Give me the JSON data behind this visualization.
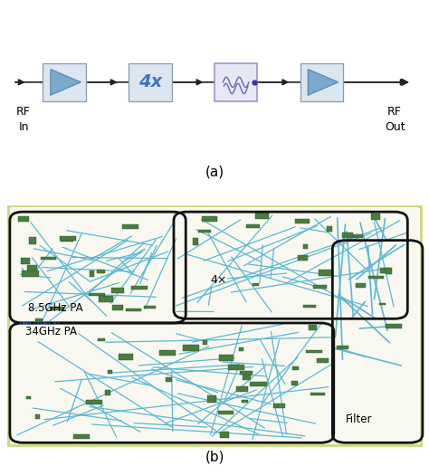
{
  "fig_width": 4.74,
  "fig_height": 5.25,
  "dpi": 100,
  "background_color": "#ffffff",
  "panel_a": {
    "label": "(a)",
    "rf_in_label": [
      "RF",
      "In"
    ],
    "rf_out_label": [
      "RF",
      "Out"
    ],
    "multiplier_label": "4x",
    "block_fill": "#dce6f1",
    "block_edge": "#aaaacc",
    "arrow_color": "#333333",
    "text_color": "#000000",
    "multiplier_text_color": "#4472c4",
    "filter_border_color": "#9999cc"
  },
  "panel_b": {
    "label": "(b)",
    "outer_border_color": "#c8dc78",
    "pa85_label": "8.5GHz PA",
    "pa34_label": "34GHz PA",
    "multiplier_label": "4×",
    "filter_label": "Filter",
    "box_color": "#000000",
    "circuit_bg": "#ffffff",
    "circuit_blue": "#5bb8d4",
    "circuit_green": "#4a7c3f",
    "small_text_color": "#4472c4"
  }
}
